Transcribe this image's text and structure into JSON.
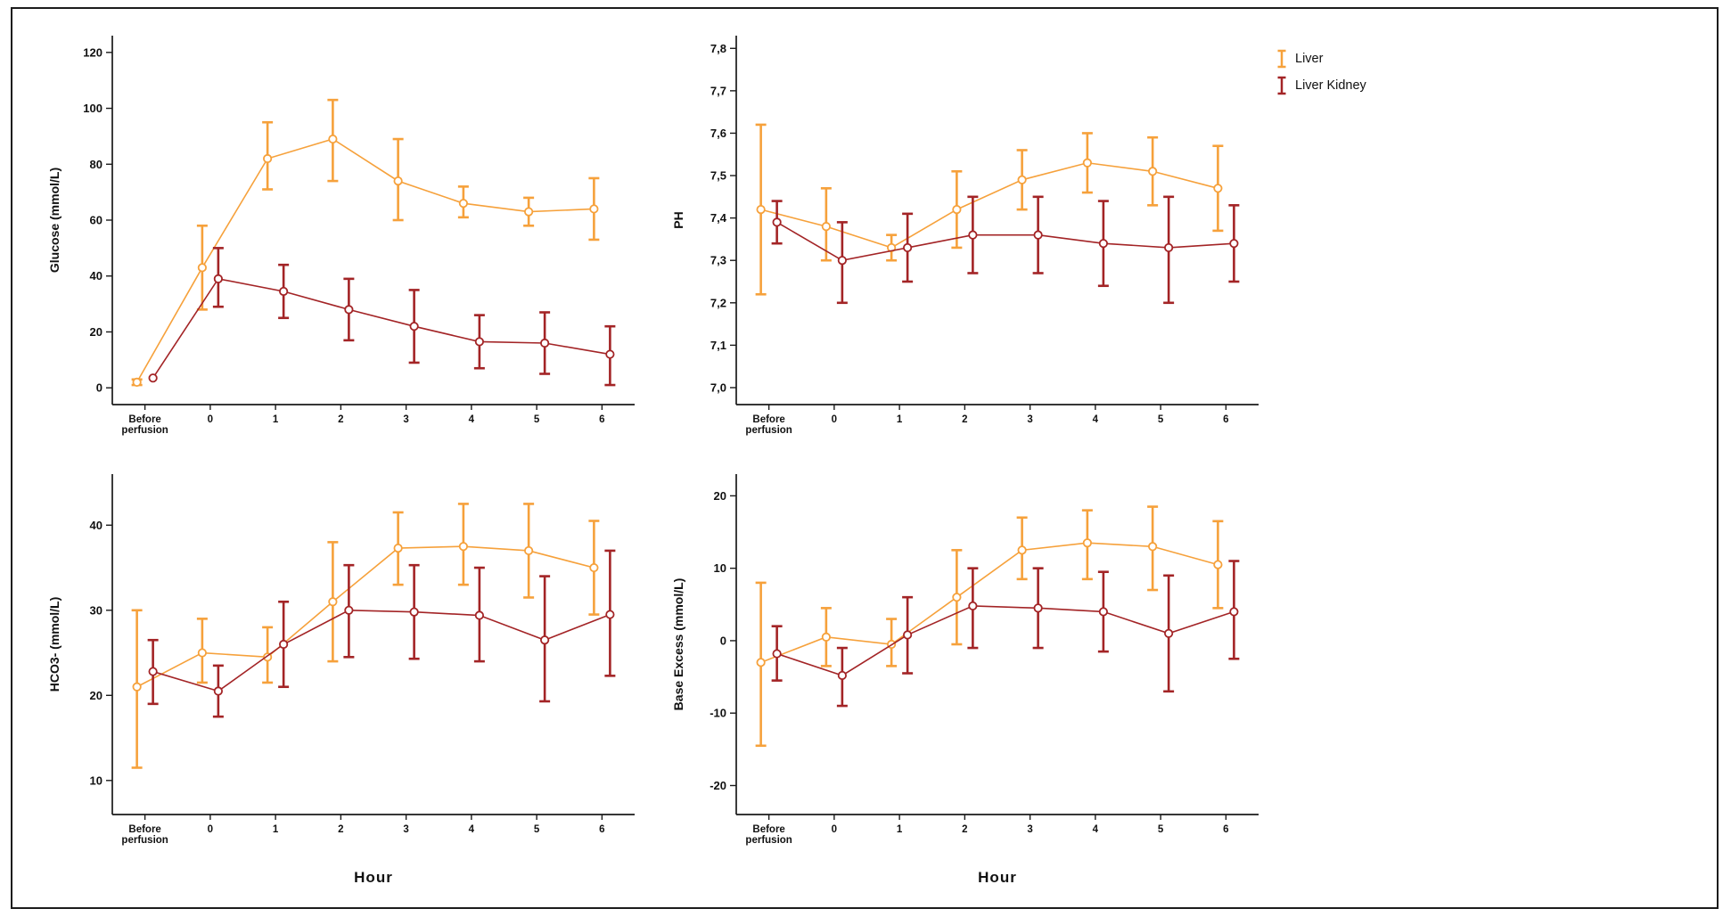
{
  "figure": {
    "xlabel": "Hour",
    "legend": [
      {
        "label": "Liver",
        "color": "#F6A13B"
      },
      {
        "label": "Liver Kidney",
        "color": "#A32426"
      }
    ],
    "axis_color": "#1a1a1a",
    "background": "#ffffff"
  },
  "chart_data": [
    {
      "type": "line",
      "id": "glucose",
      "title": "",
      "xlabel": "",
      "ylabel": "Glucose (mmol/L)",
      "categories": [
        "Before\nperfusion",
        "0",
        "1",
        "2",
        "3",
        "4",
        "5",
        "6"
      ],
      "yticks": [
        0,
        20,
        40,
        60,
        80,
        100,
        120
      ],
      "ylim": [
        -6,
        126
      ],
      "grid": false,
      "error_bars": true,
      "legend_position": "outside-right",
      "series": [
        {
          "name": "Liver",
          "color": "#F6A13B",
          "values": [
            2,
            43,
            82,
            89,
            74,
            66,
            63,
            64
          ],
          "lo": [
            1,
            28,
            71,
            74,
            60,
            61,
            58,
            53
          ],
          "hi": [
            3,
            58,
            95,
            103,
            89,
            72,
            68,
            75
          ]
        },
        {
          "name": "Liver Kidney",
          "color": "#A32426",
          "values": [
            3.5,
            39,
            34.5,
            28,
            22,
            16.5,
            16,
            12
          ],
          "lo": [
            null,
            29,
            25,
            17,
            9,
            7,
            5,
            1
          ],
          "hi": [
            null,
            50,
            44,
            39,
            35,
            26,
            27,
            22
          ]
        }
      ]
    },
    {
      "type": "line",
      "id": "ph",
      "title": "",
      "xlabel": "",
      "ylabel": "PH",
      "categories": [
        "Before\nperfusion",
        "0",
        "1",
        "2",
        "3",
        "4",
        "5",
        "6"
      ],
      "yticks": [
        7.0,
        7.1,
        7.2,
        7.3,
        7.4,
        7.5,
        7.6,
        7.7,
        7.8
      ],
      "ytick_labels": [
        "7,0",
        "7,1",
        "7,2",
        "7,3",
        "7,4",
        "7,5",
        "7,6",
        "7,7",
        "7,8"
      ],
      "ylim": [
        6.96,
        7.83
      ],
      "grid": false,
      "error_bars": true,
      "series": [
        {
          "name": "Liver",
          "color": "#F6A13B",
          "values": [
            7.42,
            7.38,
            7.33,
            7.42,
            7.49,
            7.53,
            7.51,
            7.47
          ],
          "lo": [
            7.22,
            7.3,
            7.3,
            7.33,
            7.42,
            7.46,
            7.43,
            7.37
          ],
          "hi": [
            7.62,
            7.47,
            7.36,
            7.51,
            7.56,
            7.6,
            7.59,
            7.57
          ]
        },
        {
          "name": "Liver Kidney",
          "color": "#A32426",
          "values": [
            7.39,
            7.3,
            7.33,
            7.36,
            7.36,
            7.34,
            7.33,
            7.34
          ],
          "lo": [
            7.34,
            7.2,
            7.25,
            7.27,
            7.27,
            7.24,
            7.2,
            7.25
          ],
          "hi": [
            7.44,
            7.39,
            7.41,
            7.45,
            7.45,
            7.44,
            7.45,
            7.43
          ]
        }
      ]
    },
    {
      "type": "line",
      "id": "hco3",
      "title": "",
      "xlabel": "Hour",
      "ylabel": "HCO3- (mmol/L)",
      "categories": [
        "Before\nperfusion",
        "0",
        "1",
        "2",
        "3",
        "4",
        "5",
        "6"
      ],
      "yticks": [
        10,
        20,
        30,
        40
      ],
      "ylim": [
        6,
        46
      ],
      "grid": false,
      "error_bars": true,
      "series": [
        {
          "name": "Liver",
          "color": "#F6A13B",
          "values": [
            21,
            25,
            24.5,
            31,
            37.3,
            37.5,
            37,
            35
          ],
          "lo": [
            11.5,
            21.5,
            21.5,
            24,
            33,
            33,
            31.5,
            29.5
          ],
          "hi": [
            30,
            29,
            28,
            38,
            41.5,
            42.5,
            42.5,
            40.5
          ]
        },
        {
          "name": "Liver Kidney",
          "color": "#A32426",
          "values": [
            22.8,
            20.5,
            26,
            30,
            29.8,
            29.4,
            26.5,
            29.5
          ],
          "lo": [
            19,
            17.5,
            21,
            24.5,
            24.3,
            24,
            19.3,
            22.3
          ],
          "hi": [
            26.5,
            23.5,
            31,
            35.3,
            35.3,
            35,
            34,
            37
          ]
        }
      ]
    },
    {
      "type": "line",
      "id": "base-excess",
      "title": "",
      "xlabel": "Hour",
      "ylabel": "Base Excess (mmol/L)",
      "categories": [
        "Before\nperfusion",
        "0",
        "1",
        "2",
        "3",
        "4",
        "5",
        "6"
      ],
      "yticks": [
        -20,
        -10,
        0,
        10,
        20
      ],
      "ylim": [
        -24,
        23
      ],
      "grid": false,
      "error_bars": true,
      "series": [
        {
          "name": "Liver",
          "color": "#F6A13B",
          "values": [
            -3,
            0.5,
            -0.5,
            6,
            12.5,
            13.5,
            13,
            10.5
          ],
          "lo": [
            -14.5,
            -3.5,
            -3.5,
            -0.5,
            8.5,
            8.5,
            7,
            4.5
          ],
          "hi": [
            8,
            4.5,
            3,
            12.5,
            17,
            18,
            18.5,
            16.5
          ]
        },
        {
          "name": "Liver Kidney",
          "color": "#A32426",
          "values": [
            -1.8,
            -4.8,
            0.8,
            4.8,
            4.5,
            4,
            1,
            4
          ],
          "lo": [
            -5.5,
            -9,
            -4.5,
            -1,
            -1,
            -1.5,
            -7,
            -2.5
          ],
          "hi": [
            2,
            -1,
            6,
            10,
            10,
            9.5,
            9,
            11
          ]
        }
      ]
    }
  ]
}
